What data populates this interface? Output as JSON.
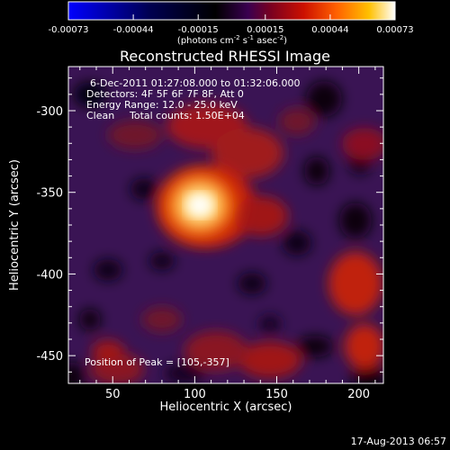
{
  "colorbar": {
    "ticks": [
      "-0.00073",
      "-0.00044",
      "-0.00015",
      "0.00015",
      "0.00044",
      "0.00073"
    ],
    "tick_values": [
      -0.00073,
      -0.00044,
      -0.00015,
      0.00015,
      0.00044,
      0.00073
    ],
    "units_label": "(photons cm",
    "units_exp1": "-2",
    "units_mid": " s",
    "units_exp2": "-1",
    "units_mid2": " asec",
    "units_exp3": "-2",
    "units_end": ")"
  },
  "chart_data": {
    "type": "heatmap",
    "title": "Reconstructed RHESSI Image",
    "xlabel": "Heliocentric X (arcsec)",
    "ylabel": "Heliocentric Y (arcsec)",
    "xlim": [
      23,
      215
    ],
    "ylim": [
      -467,
      -273
    ],
    "x_ticks": [
      "50",
      "100",
      "150",
      "200"
    ],
    "x_tick_values": [
      50,
      100,
      150,
      200
    ],
    "y_ticks": [
      "-300",
      "-350",
      "-400",
      "-450"
    ],
    "y_tick_values": [
      -300,
      -350,
      -400,
      -450
    ],
    "colormap": "red-temperature (blue → black → purple → red → orange → yellow → white)",
    "value_range": [
      -0.00073,
      0.00073
    ],
    "peak": {
      "x": 105,
      "y": -357
    },
    "annotations": [
      "6-Dec-2011 01:27:08.000 to 01:32:06.000",
      "Detectors: 4F 5F 6F 7F 8F, Att 0",
      "Energy Range: 12.0 - 25.0 keV",
      "Clean",
      "Total counts: 1.50E+04"
    ],
    "peak_label": "Position of Peak = [105,-357]"
  },
  "footer": {
    "timestamp": "17-Aug-2013 06:57"
  }
}
